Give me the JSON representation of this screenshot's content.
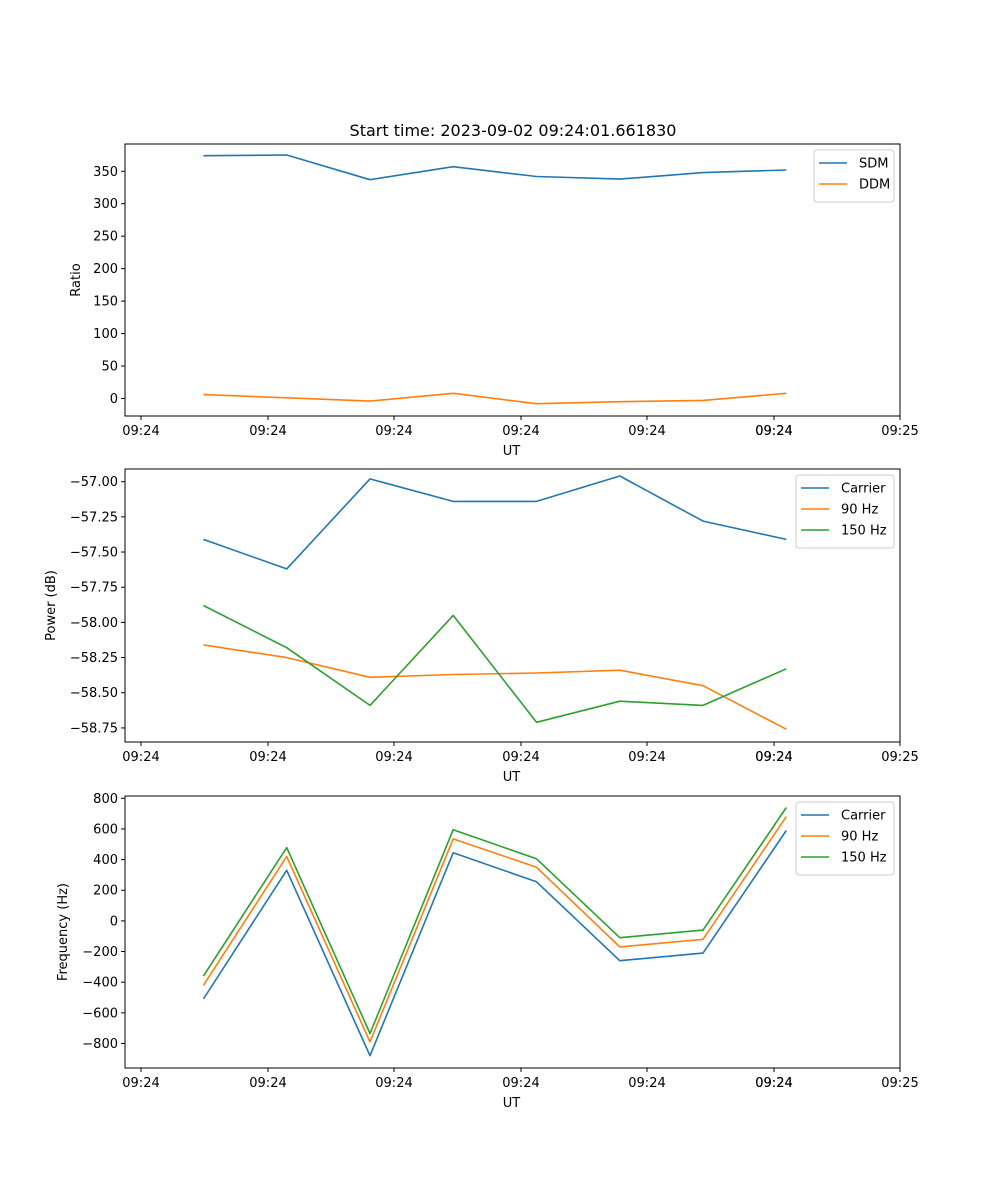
{
  "chart_data": [
    {
      "type": "line",
      "title": "Start time: 2023-09-02 09:24:01.661830",
      "xlabel": "UT",
      "ylabel": "Ratio",
      "xtick_labels": [
        "09:24",
        "09:24",
        "09:24",
        "09:24",
        "09:24",
        "09:24",
        "09:24",
        "09:25"
      ],
      "yticks": [
        0,
        50,
        100,
        150,
        200,
        250,
        300,
        350
      ],
      "ylim": [
        -27,
        392
      ],
      "grid": false,
      "legend": "top-right",
      "series": [
        {
          "name": "SDM",
          "color": "#1f77b4",
          "values": [
            374,
            375,
            337,
            357,
            342,
            338,
            348,
            352
          ]
        },
        {
          "name": "DDM",
          "color": "#ff7f0e",
          "values": [
            6,
            1,
            -4,
            8,
            -8,
            -5,
            -3,
            8
          ]
        }
      ]
    },
    {
      "type": "line",
      "title": "",
      "xlabel": "UT",
      "ylabel": "Power (dB)",
      "xtick_labels": [
        "09:24",
        "09:24",
        "09:24",
        "09:24",
        "09:24",
        "09:24",
        "09:24",
        "09:25"
      ],
      "yticks": [
        -57.0,
        -57.25,
        -57.5,
        -57.75,
        -58.0,
        -58.25,
        -58.5,
        -58.75
      ],
      "ytick_labels": [
        "−57.00",
        "−57.25",
        "−57.50",
        "−57.75",
        "−58.00",
        "−58.25",
        "−58.50",
        "−58.75"
      ],
      "ylim": [
        -58.85,
        -56.91
      ],
      "grid": false,
      "legend": "top-right",
      "series": [
        {
          "name": "Carrier",
          "color": "#1f77b4",
          "values": [
            -57.41,
            -57.62,
            -56.98,
            -57.14,
            -57.14,
            -56.96,
            -57.28,
            -57.41
          ]
        },
        {
          "name": "90 Hz",
          "color": "#ff7f0e",
          "values": [
            -58.16,
            -58.25,
            -58.39,
            -58.37,
            -58.36,
            -58.34,
            -58.45,
            -58.76
          ]
        },
        {
          "name": "150 Hz",
          "color": "#2ca02c",
          "values": [
            -57.88,
            -58.18,
            -58.59,
            -57.95,
            -58.71,
            -58.56,
            -58.59,
            -58.33
          ]
        }
      ]
    },
    {
      "type": "line",
      "title": "",
      "xlabel": "UT",
      "ylabel": "Frequency (Hz)",
      "xtick_labels": [
        "09:24",
        "09:24",
        "09:24",
        "09:24",
        "09:24",
        "09:24",
        "09:24",
        "09:25"
      ],
      "yticks": [
        800,
        600,
        400,
        200,
        0,
        -200,
        -400,
        -600,
        -800
      ],
      "ytick_labels": [
        "800",
        "600",
        "400",
        "200",
        "0",
        "−200",
        "−400",
        "−600",
        "−800"
      ],
      "ylim": [
        -960,
        815
      ],
      "grid": false,
      "legend": "top-right",
      "series": [
        {
          "name": "Carrier",
          "color": "#1f77b4",
          "values": [
            -510,
            330,
            -880,
            445,
            255,
            -260,
            -210,
            590
          ]
        },
        {
          "name": "90 Hz",
          "color": "#ff7f0e",
          "values": [
            -420,
            420,
            -790,
            535,
            350,
            -170,
            -120,
            680
          ]
        },
        {
          "name": "150 Hz",
          "color": "#2ca02c",
          "values": [
            -360,
            478,
            -735,
            595,
            405,
            -110,
            -60,
            740
          ]
        }
      ]
    }
  ]
}
